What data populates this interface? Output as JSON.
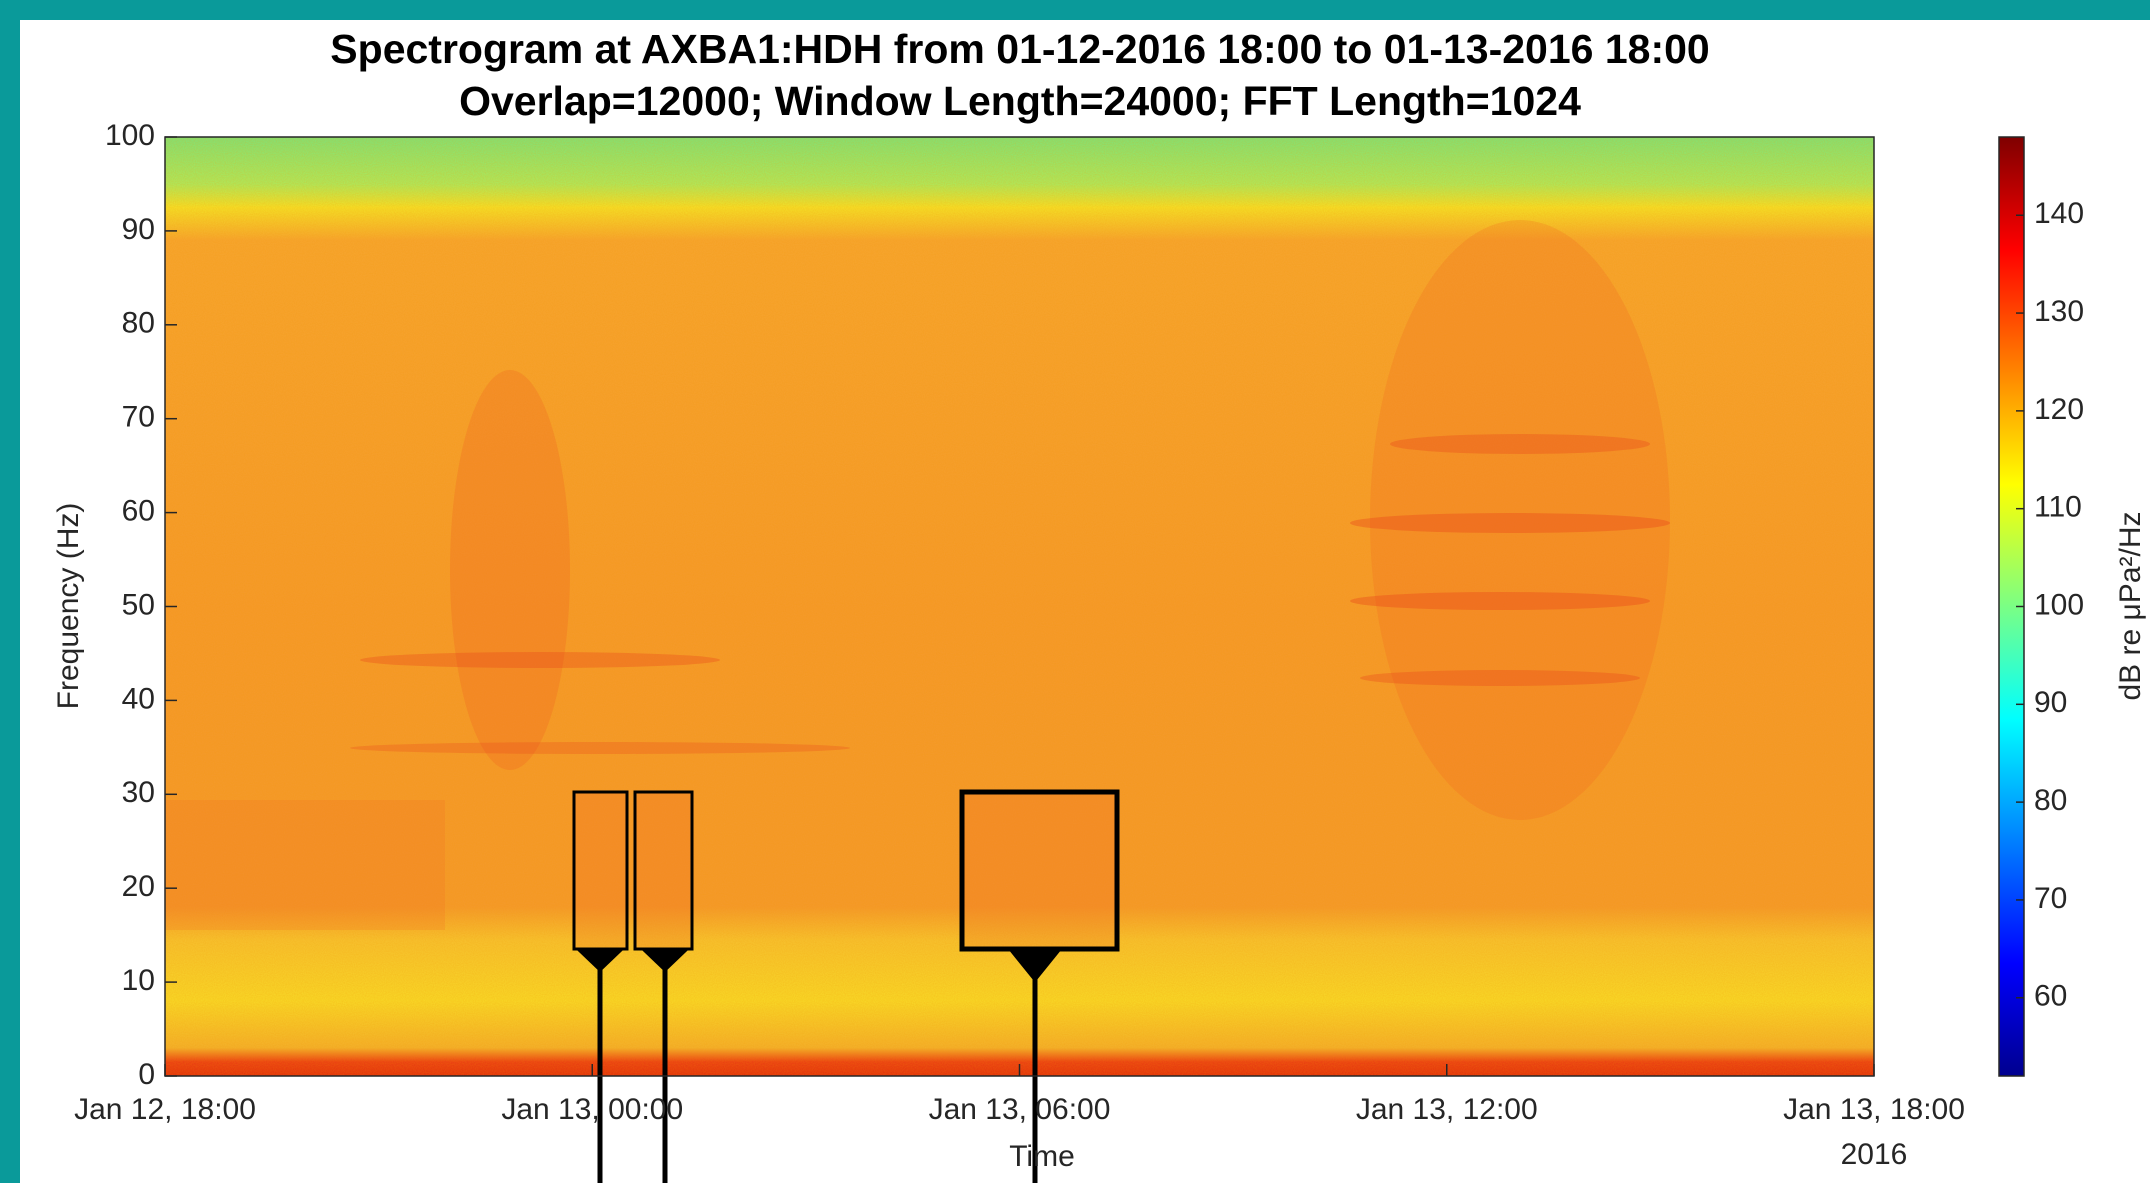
{
  "chart_data": {
    "type": "spectrogram",
    "title": "Spectrogram at AXBA1:HDH from 01-12-2016 18:00 to 01-13-2016 18:00",
    "subtitle": "Overlap=12000; Window Length=24000; FFT Length=1024",
    "y_label": "Frequency (Hz)",
    "x_label": "Time",
    "x_year_label": "2016",
    "xlim": [
      "2016-01-12T18:00",
      "2016-01-13T18:00"
    ],
    "xticks": [
      {
        "value": "2016-01-12T18:00",
        "label": "Jan 12, 18:00"
      },
      {
        "value": "2016-01-13T00:00",
        "label": "Jan 13, 00:00"
      },
      {
        "value": "2016-01-13T06:00",
        "label": "Jan 13, 06:00"
      },
      {
        "value": "2016-01-13T12:00",
        "label": "Jan 13, 12:00"
      },
      {
        "value": "2016-01-13T18:00",
        "label": "Jan 13, 18:00"
      }
    ],
    "ylim": [
      0,
      100
    ],
    "yticks": [
      0,
      10,
      20,
      30,
      40,
      50,
      60,
      70,
      80,
      90,
      100
    ],
    "colorbar": {
      "label": "dB re μPa²/Hz",
      "clim": [
        52,
        148
      ],
      "ticks": [
        60,
        70,
        80,
        90,
        100,
        110,
        120,
        130,
        140
      ]
    }
  }
}
